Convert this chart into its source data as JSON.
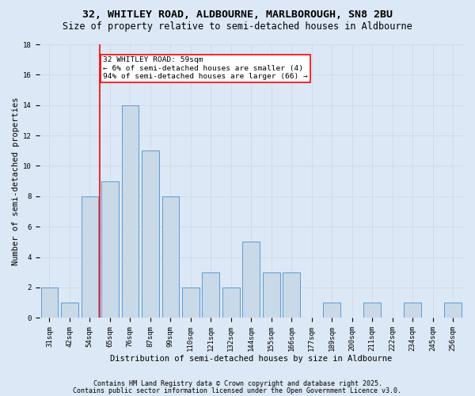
{
  "title1": "32, WHITLEY ROAD, ALDBOURNE, MARLBOROUGH, SN8 2BU",
  "title2": "Size of property relative to semi-detached houses in Aldbourne",
  "xlabel": "Distribution of semi-detached houses by size in Aldbourne",
  "ylabel": "Number of semi-detached properties",
  "bar_labels": [
    "31sqm",
    "42sqm",
    "54sqm",
    "65sqm",
    "76sqm",
    "87sqm",
    "99sqm",
    "110sqm",
    "121sqm",
    "132sqm",
    "144sqm",
    "155sqm",
    "166sqm",
    "177sqm",
    "189sqm",
    "200sqm",
    "211sqm",
    "222sqm",
    "234sqm",
    "245sqm",
    "256sqm"
  ],
  "bar_values": [
    2,
    1,
    8,
    9,
    14,
    11,
    8,
    2,
    3,
    2,
    5,
    3,
    3,
    0,
    1,
    0,
    1,
    0,
    1,
    0,
    1
  ],
  "bar_color": "#c9d9e8",
  "bar_edge_color": "#5b9bd5",
  "red_line_x": 2.5,
  "annotation_text": "32 WHITLEY ROAD: 59sqm\n← 6% of semi-detached houses are smaller (4)\n94% of semi-detached houses are larger (66) →",
  "annotation_box_color": "white",
  "annotation_box_edge": "red",
  "ylim": [
    0,
    18
  ],
  "yticks": [
    0,
    2,
    4,
    6,
    8,
    10,
    12,
    14,
    16,
    18
  ],
  "grid_color": "#d0d8e8",
  "background_color": "#dce8f5",
  "footer1": "Contains HM Land Registry data © Crown copyright and database right 2025.",
  "footer2": "Contains public sector information licensed under the Open Government Licence v3.0.",
  "title_fontsize": 9.5,
  "subtitle_fontsize": 8.5,
  "axis_label_fontsize": 7.5,
  "tick_fontsize": 6.5,
  "annotation_fontsize": 6.8,
  "footer_fontsize": 6.0
}
